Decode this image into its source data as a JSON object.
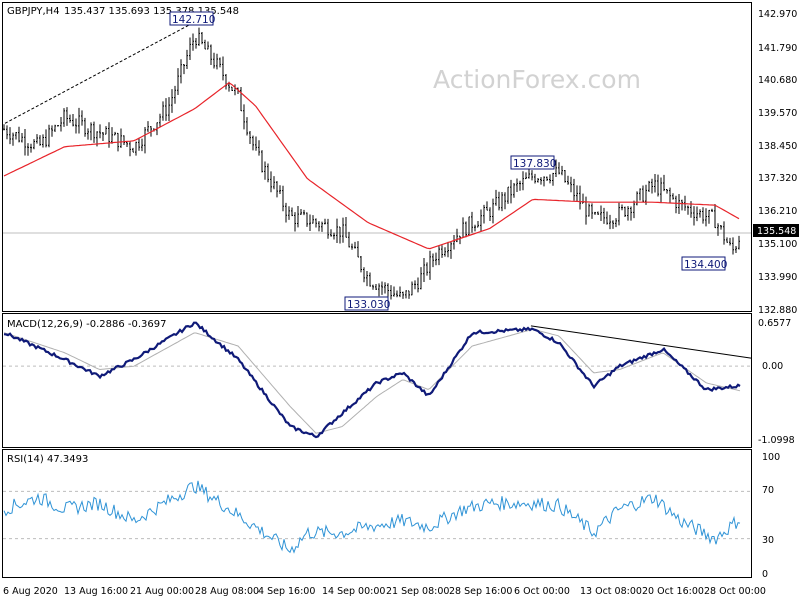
{
  "header": {
    "symbol": "GBPJPY,H4",
    "ohlc": "135.437 135.693 135.378 135.548"
  },
  "watermark": "ActionForex.com",
  "colors": {
    "price": "#000000",
    "sma": "#e8242a",
    "macd": "#0f1a78",
    "signal": "#b0b0b0",
    "rsi": "#2f93d6",
    "level_line": "#bfbfbf",
    "trendline": "#000000",
    "grid_dash": "#bdbdbd"
  },
  "price_axis": {
    "ticks": [
      "142.970",
      "141.790",
      "140.680",
      "139.570",
      "138.450",
      "137.320",
      "136.210",
      "135.100",
      "133.990",
      "132.880"
    ],
    "current": "135.548"
  },
  "macd_panel": {
    "label": "MACD(12,26,9) -0.2886 -0.3697",
    "ticks": [
      "0.6577",
      "0.00",
      "-1.0998"
    ]
  },
  "rsi_panel": {
    "label": "RSI(14) 47.3493",
    "ticks": [
      "100",
      "70",
      "30",
      "0"
    ]
  },
  "time_axis": {
    "ticks": [
      "6 Aug 2020",
      "13 Aug 16:00",
      "21 Aug 00:00",
      "28 Aug 08:00",
      "4 Sep 16:00",
      "14 Sep 00:00",
      "21 Sep 08:00",
      "28 Sep 16:00",
      "6 Oct 00:00",
      "13 Oct 08:00",
      "20 Oct 16:00",
      "28 Oct 00:00"
    ]
  },
  "annotations": [
    "142.710",
    "137.830",
    "133.030",
    "134.400"
  ],
  "chart_data": {
    "type": "line",
    "title": "GBPJPY,H4",
    "subtitle": "135.437 135.693 135.378 135.548",
    "ylim": [
      132.88,
      142.97
    ],
    "price_anchors": {
      "x": [
        "6 Aug 2020",
        "10 Aug",
        "13 Aug",
        "17 Aug",
        "21 Aug",
        "25 Aug",
        "28 Aug",
        "31 Aug",
        "2 Sep",
        "4 Sep",
        "8 Sep",
        "10 Sep",
        "14 Sep",
        "17 Sep",
        "21 Sep",
        "23 Sep",
        "25 Sep",
        "28 Sep",
        "1 Oct",
        "4 Oct",
        "6 Oct",
        "9 Oct",
        "13 Oct",
        "16 Oct",
        "20 Oct",
        "23 Oct",
        "27 Oct",
        "29 Oct",
        "30 Oct"
      ],
      "close": [
        139.1,
        138.5,
        139.5,
        139.0,
        138.5,
        139.9,
        142.3,
        141.1,
        140.2,
        138.3,
        136.1,
        136.0,
        135.6,
        134.0,
        133.3,
        134.0,
        134.9,
        135.7,
        136.3,
        137.1,
        137.5,
        137.6,
        136.0,
        136.2,
        137.2,
        136.5,
        136.0,
        134.9,
        135.548
      ]
    },
    "sma_anchors": {
      "x": [
        "6 Aug 2020",
        "13 Aug",
        "21 Aug",
        "28 Aug",
        "1 Sep",
        "4 Sep",
        "10 Sep",
        "17 Sep",
        "24 Sep",
        "1 Oct",
        "6 Oct",
        "13 Oct",
        "20 Oct",
        "27 Oct",
        "30 Oct"
      ],
      "values": [
        137.5,
        138.5,
        138.7,
        139.8,
        140.7,
        139.9,
        137.4,
        135.9,
        135.0,
        135.7,
        136.7,
        136.6,
        136.6,
        136.5,
        136.0
      ]
    },
    "levels": [
      {
        "label": "142.710",
        "value": 142.71
      },
      {
        "label": "137.830",
        "value": 137.83
      },
      {
        "label": "133.030",
        "value": 133.03
      },
      {
        "label": "134.400",
        "value": 134.4
      }
    ],
    "macd": {
      "ylim": [
        -1.0998,
        0.6577
      ],
      "x": [
        "6 Aug 2020",
        "13 Aug",
        "17 Aug",
        "21 Aug",
        "28 Aug",
        "2 Sep",
        "8 Sep",
        "11 Sep",
        "14 Sep",
        "18 Sep",
        "21 Sep",
        "24 Sep",
        "29 Sep",
        "6 Oct",
        "9 Oct",
        "13 Oct",
        "16 Oct",
        "21 Oct",
        "26 Oct",
        "30 Oct"
      ],
      "macd_line": [
        0.5,
        0.1,
        -0.15,
        0.1,
        0.65,
        0.1,
        -0.9,
        -1.05,
        -0.7,
        -0.25,
        -0.1,
        -0.45,
        0.5,
        0.55,
        0.35,
        -0.3,
        0.0,
        0.25,
        -0.35,
        -0.29
      ],
      "signal_line": [
        0.5,
        0.2,
        -0.05,
        0.0,
        0.5,
        0.3,
        -0.6,
        -1.0,
        -0.9,
        -0.45,
        -0.2,
        -0.35,
        0.3,
        0.55,
        0.45,
        -0.1,
        -0.05,
        0.2,
        -0.25,
        -0.37
      ]
    },
    "rsi": {
      "ylim": [
        0,
        100
      ],
      "levels": [
        70,
        30
      ],
      "x": [
        "6 Aug 2020",
        "10 Aug",
        "13 Aug",
        "17 Aug",
        "21 Aug",
        "28 Aug",
        "31 Aug",
        "4 Sep",
        "8 Sep",
        "10 Sep",
        "14 Sep",
        "17 Sep",
        "21 Sep",
        "24 Sep",
        "28 Sep",
        "1 Oct",
        "6 Oct",
        "9 Oct",
        "13 Oct",
        "16 Oct",
        "20 Oct",
        "23 Oct",
        "27 Oct",
        "30 Oct"
      ],
      "values": [
        55,
        65,
        55,
        60,
        45,
        75,
        60,
        40,
        20,
        35,
        35,
        40,
        45,
        40,
        55,
        60,
        60,
        58,
        35,
        55,
        65,
        45,
        30,
        47.35
      ]
    }
  }
}
